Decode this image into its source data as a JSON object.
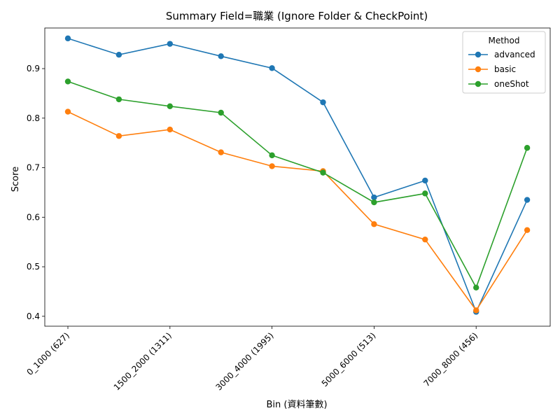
{
  "chart_data": {
    "type": "line",
    "title": "Summary Field=職業 (Ignore Folder & CheckPoint)",
    "xlabel": "Bin (資料筆數)",
    "ylabel": "Score",
    "categories": [
      "0_1000 (627)",
      "",
      "1500_2000 (1311)",
      "",
      "3000_4000 (1995)",
      "",
      "5000_6000 (513)",
      "",
      "7000_8000 (456)",
      ""
    ],
    "yticks": [
      "0.4",
      "0.5",
      "0.6",
      "0.7",
      "0.8",
      "0.9"
    ],
    "ylim": [
      0.38,
      0.982
    ],
    "legend": {
      "title": "Method",
      "placement": "top-right"
    },
    "grid": false,
    "series": [
      {
        "name": "advanced",
        "color": "#1f77b4",
        "values": [
          0.961,
          0.928,
          0.95,
          0.925,
          0.901,
          0.832,
          0.64,
          0.674,
          0.409,
          0.635
        ]
      },
      {
        "name": "basic",
        "color": "#ff7f0e",
        "values": [
          0.813,
          0.764,
          0.777,
          0.731,
          0.703,
          0.693,
          0.586,
          0.555,
          0.412,
          0.574
        ]
      },
      {
        "name": "oneShot",
        "color": "#2ca02c",
        "values": [
          0.874,
          0.838,
          0.824,
          0.811,
          0.725,
          0.69,
          0.63,
          0.648,
          0.458,
          0.74
        ]
      }
    ]
  }
}
